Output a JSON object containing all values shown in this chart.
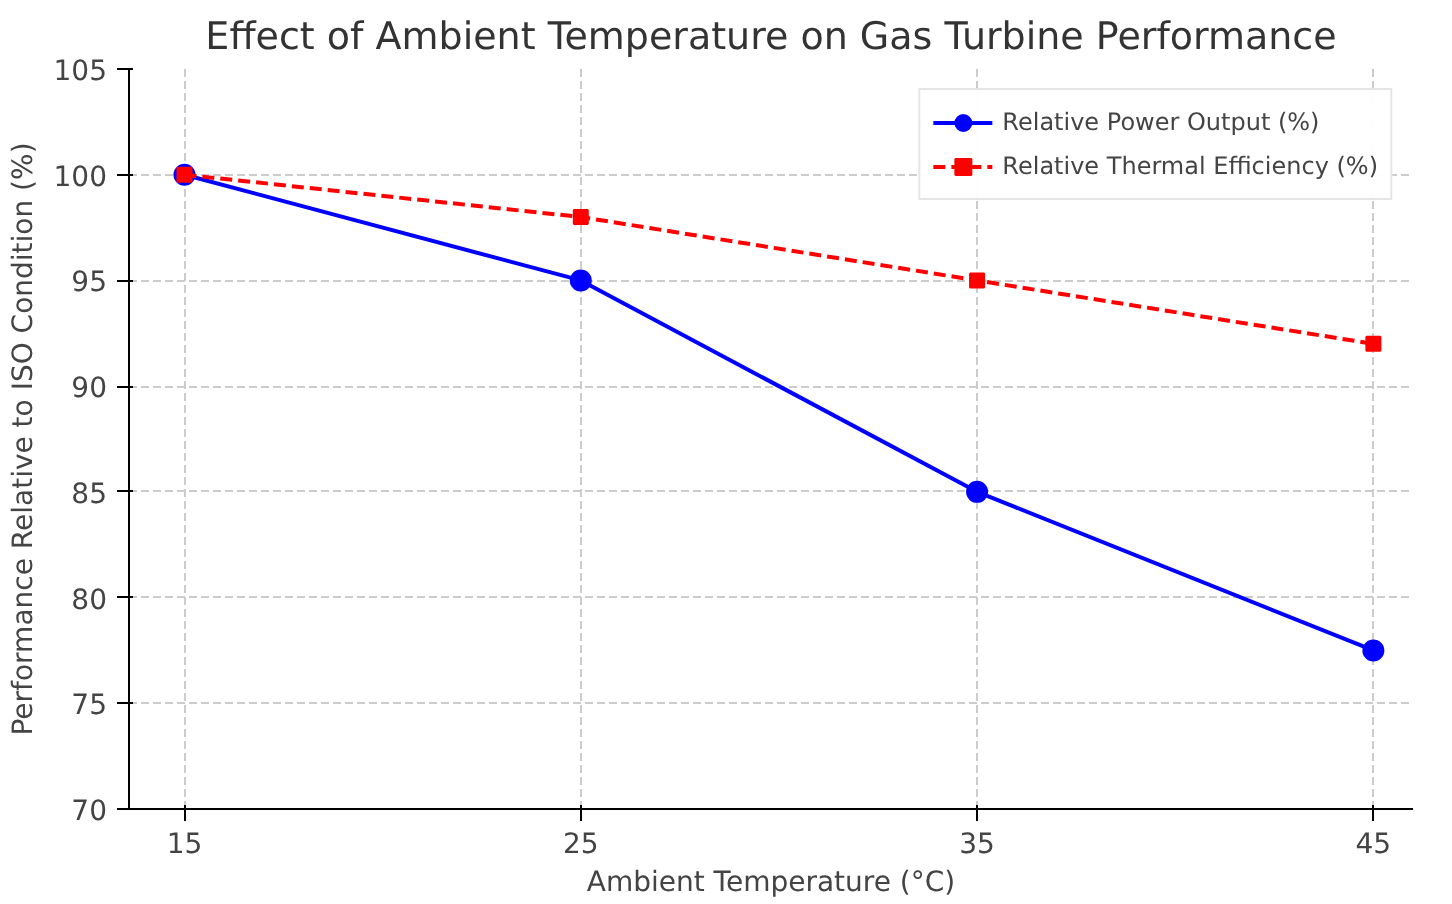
{
  "chart_data": {
    "type": "line",
    "title": "Effect of Ambient Temperature on Gas Turbine Performance",
    "xlabel": "Ambient Temperature (°C)",
    "ylabel": "Performance Relative to ISO Condition (%)",
    "x": [
      15,
      25,
      35,
      45
    ],
    "series": [
      {
        "name": "Relative Power Output (%)",
        "color": "#0000ff",
        "values": [
          100,
          95,
          85,
          77.5
        ],
        "marker": "circle",
        "line_style": "solid"
      },
      {
        "name": "Relative Thermal Efficiency (%)",
        "color": "#ff0000",
        "values": [
          100,
          98,
          95,
          92
        ],
        "marker": "square",
        "line_style": "dashed"
      }
    ],
    "xlim": [
      13.6,
      46
    ],
    "ylim": [
      70,
      105
    ],
    "xticks": [
      15,
      25,
      35,
      45
    ],
    "yticks": [
      70,
      75,
      80,
      85,
      90,
      95,
      100,
      105
    ],
    "grid": true,
    "legend": "top right"
  }
}
